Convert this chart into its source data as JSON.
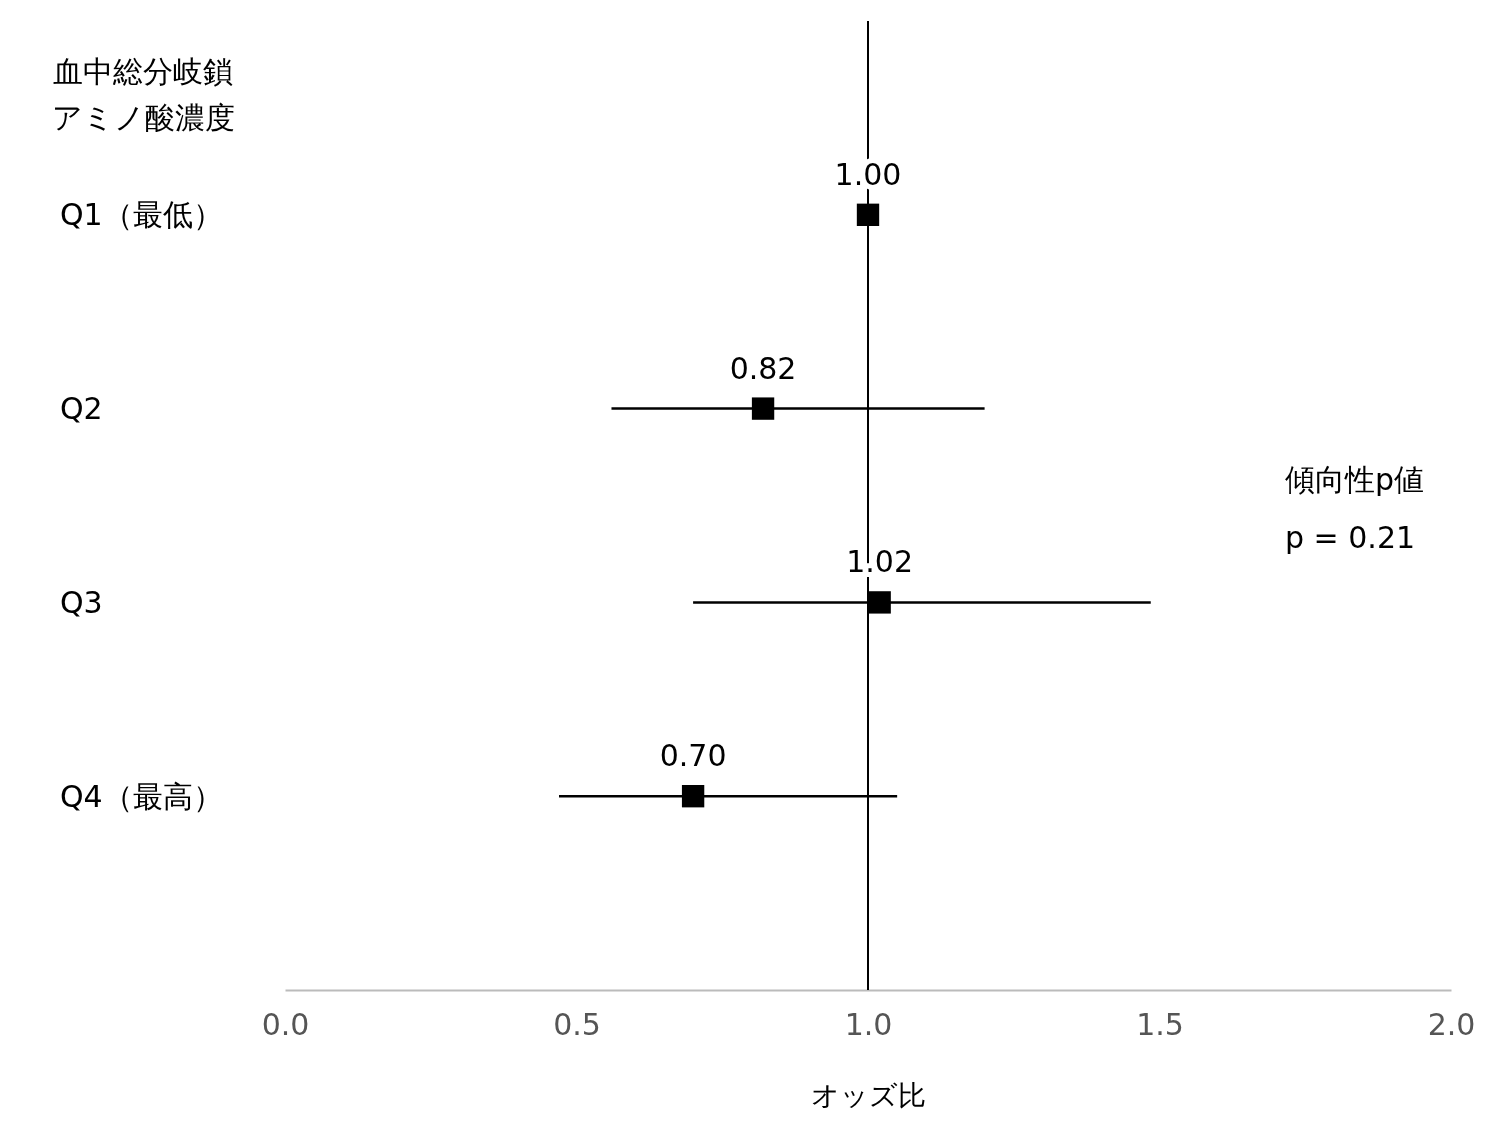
{
  "chart_data": {
    "type": "scatter",
    "orientation": "horizontal",
    "ylabel": "血中総分岐鎖アミノ酸濃度",
    "xlabel": "オッズ比",
    "categories": [
      "Q1（最低）",
      "Q2",
      "Q3",
      "Q4（最高）"
    ],
    "values": [
      1.0,
      0.82,
      1.02,
      0.7
    ],
    "value_labels": [
      "1.00",
      "0.82",
      "1.02",
      "0.70"
    ],
    "errors": [
      null,
      [
        0.56,
        1.2
      ],
      [
        0.7,
        1.485
      ],
      [
        0.47,
        1.05
      ]
    ],
    "color": "#000000",
    "marker": "square",
    "grid": false,
    "xlim": [
      0,
      2
    ],
    "xticks": [
      {
        "value": 0,
        "label": "0.0"
      },
      {
        "value": 0.5,
        "label": "0.5"
      },
      {
        "value": 1,
        "label": "1.0"
      },
      {
        "value": 1.5,
        "label": "1.5"
      },
      {
        "value": 2,
        "label": "2.0"
      }
    ],
    "ref_lines": [
      {
        "axis": "x",
        "value": 1,
        "color": "#000000"
      }
    ],
    "annotations": [
      "傾向性p値",
      "p = 0.21"
    ]
  }
}
